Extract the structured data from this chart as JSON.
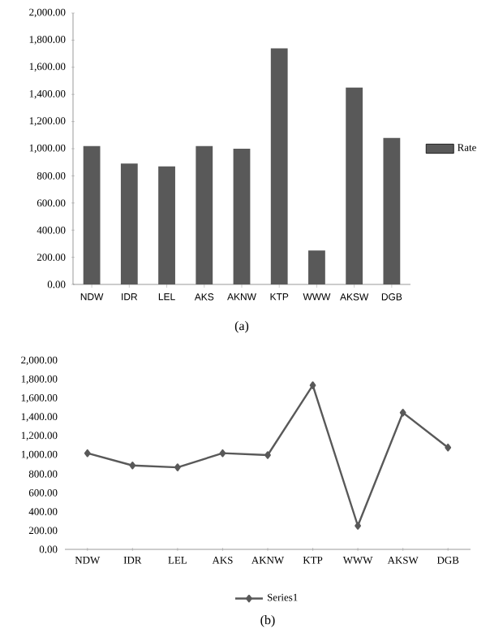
{
  "chart_data": [
    {
      "type": "bar",
      "categories": [
        "NDW",
        "IDR",
        "LEL",
        "AKS",
        "AKNW",
        "KTP",
        "WWW",
        "AKSW",
        "DGB"
      ],
      "series": [
        {
          "name": "Rate",
          "color": "#595959",
          "values": [
            1020,
            890,
            870,
            1020,
            1000,
            1740,
            250,
            1450,
            1080
          ]
        }
      ],
      "ylim": [
        0,
        2000
      ],
      "yticks": [
        {
          "value": 0,
          "label": "0.00"
        },
        {
          "value": 200,
          "label": "200.00"
        },
        {
          "value": 400,
          "label": "400.00"
        },
        {
          "value": 600,
          "label": "600.00"
        },
        {
          "value": 800,
          "label": "800.00"
        },
        {
          "value": 1000,
          "label": "1,000.00"
        },
        {
          "value": 1200,
          "label": "1,200.00"
        },
        {
          "value": 1400,
          "label": "1,400.00"
        },
        {
          "value": 1600,
          "label": "1,600.00"
        },
        {
          "value": 1800,
          "label": "1,800.00"
        },
        {
          "value": 2000,
          "label": "2,000.00"
        }
      ],
      "legend": "right",
      "annotations": [
        "(a)"
      ]
    },
    {
      "type": "line",
      "categories": [
        "NDW",
        "IDR",
        "LEL",
        "AKS",
        "AKNW",
        "KTP",
        "WWW",
        "AKSW",
        "DGB"
      ],
      "series": [
        {
          "name": "Series1",
          "color": "#595959",
          "values": [
            1020,
            890,
            870,
            1020,
            1000,
            1740,
            250,
            1450,
            1080
          ]
        }
      ],
      "ylim": [
        0,
        2000
      ],
      "yticks": [
        {
          "value": 0,
          "label": "0.00"
        },
        {
          "value": 200,
          "label": "200.00"
        },
        {
          "value": 400,
          "label": "400.00"
        },
        {
          "value": 600,
          "label": "600.00"
        },
        {
          "value": 800,
          "label": "800.00"
        },
        {
          "value": 1000,
          "label": "1,000.00"
        },
        {
          "value": 1200,
          "label": "1,200.00"
        },
        {
          "value": 1400,
          "label": "1,400.00"
        },
        {
          "value": 1600,
          "label": "1,600.00"
        },
        {
          "value": 1800,
          "label": "1,800.00"
        },
        {
          "value": 2000,
          "label": "2,000.00"
        }
      ],
      "marker": "diamond",
      "legend": "bottom",
      "annotations": [
        "(b)"
      ]
    }
  ]
}
